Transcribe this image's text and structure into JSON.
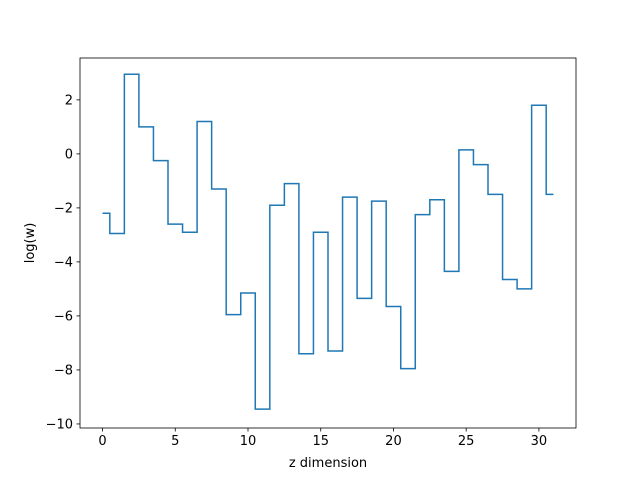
{
  "chart_data": {
    "type": "line",
    "drawstyle": "steps-mid",
    "xlabel": "z dimension",
    "ylabel": "log(w)",
    "xlim": [
      -1.55,
      32.55
    ],
    "ylim": [
      -10.15,
      3.55
    ],
    "xticks": [
      0,
      5,
      10,
      15,
      20,
      25,
      30
    ],
    "xtick_labels": [
      "0",
      "5",
      "10",
      "15",
      "20",
      "25",
      "30"
    ],
    "yticks": [
      -10,
      -8,
      -6,
      -4,
      -2,
      0,
      2
    ],
    "ytick_labels": [
      "−10",
      "−8",
      "−6",
      "−4",
      "−2",
      "0",
      "2"
    ],
    "grid": false,
    "series": [
      {
        "color": "#1f77b4",
        "x": [
          0,
          1,
          2,
          3,
          4,
          5,
          6,
          7,
          8,
          9,
          10,
          11,
          12,
          13,
          14,
          15,
          16,
          17,
          18,
          19,
          20,
          21,
          22,
          23,
          24,
          25,
          26,
          27,
          28,
          29,
          30,
          31
        ],
        "y": [
          -2.2,
          -2.95,
          2.95,
          1.0,
          -0.25,
          -2.6,
          -2.9,
          1.2,
          -1.3,
          -5.95,
          -5.15,
          -9.45,
          -1.9,
          -1.1,
          -7.4,
          -2.9,
          -7.3,
          -1.6,
          -5.35,
          -1.75,
          -5.65,
          -7.95,
          -2.25,
          -1.7,
          -4.35,
          0.15,
          -0.4,
          -1.5,
          -4.65,
          -5.0,
          1.8,
          -1.5
        ]
      }
    ]
  }
}
